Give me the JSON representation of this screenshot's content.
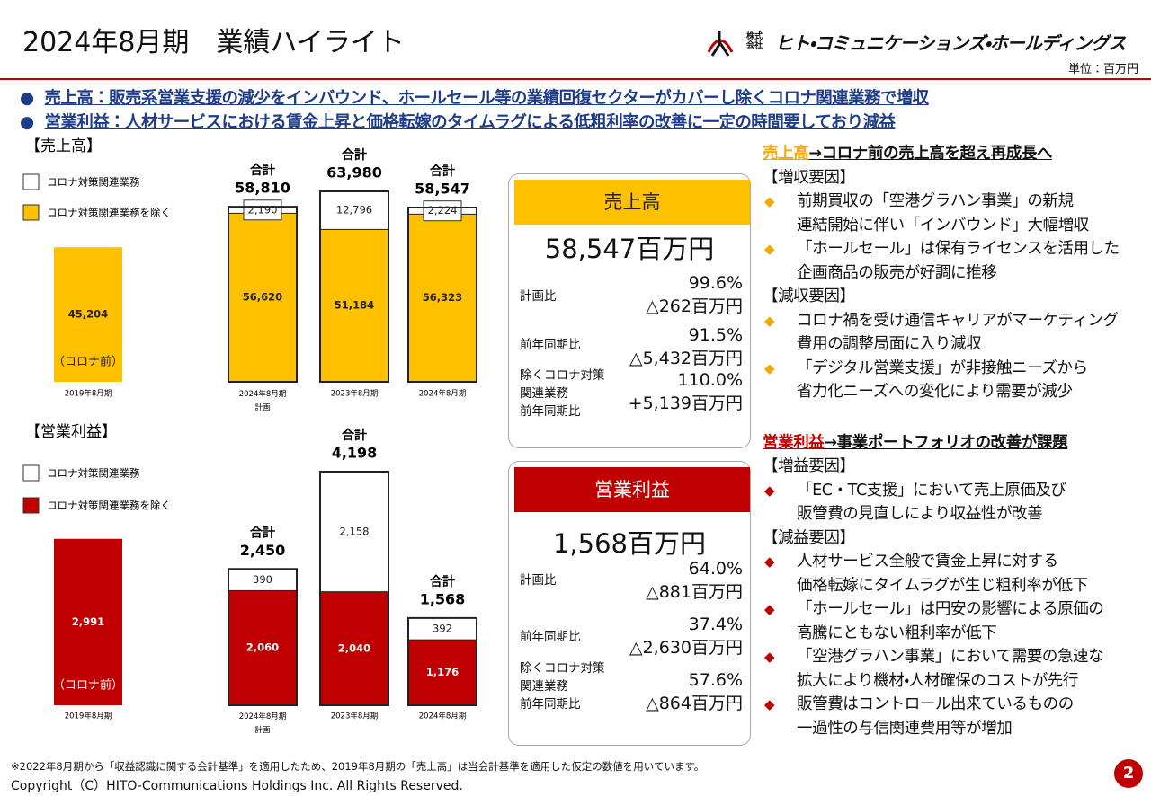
{
  "header": {
    "title": "2024年8月期　業績ハイライト",
    "company_prefix": "株式会社",
    "company": "ヒト・コミュニケーションズ・ホールディングス",
    "unit": "単位：百万円"
  },
  "headlines": [
    "売上高：販売系営業支援の減少をインバウンド、ホールセール等の業績回復セクターがカバーし除くコロナ関連業務で増収",
    "営業利益：人材サービスにおける賃金上昇と価格転嫁のタイムラグによる低粗利率の改善に一定の時間要しており減益"
  ],
  "chart_data": [
    {
      "type": "bar",
      "stacked": true,
      "title": "【売上高】",
      "categories": [
        "2019年8月期",
        "2024年8月期 計画",
        "2023年8月期",
        "2024年8月期"
      ],
      "series": [
        {
          "name": "コロナ対策関連業務を除く",
          "color": "#FFC000",
          "values": [
            45204,
            56620,
            51184,
            56323
          ],
          "value_labels": [
            "45,204",
            "56,620",
            "51,184",
            "56,323"
          ]
        },
        {
          "name": "コロナ対策関連業務",
          "color": "#FFFFFF",
          "values": [
            null,
            2190,
            12796,
            2224
          ],
          "value_labels": [
            null,
            "2,190",
            "12,796",
            "2,224"
          ]
        }
      ],
      "total_label": "合計",
      "totals": [
        null,
        58810,
        63980,
        58547
      ],
      "total_labels": [
        null,
        "58,810",
        "63,980",
        "58,547"
      ],
      "annotation": "（コロナ前）"
    },
    {
      "type": "bar",
      "stacked": true,
      "title": "【営業利益】",
      "categories": [
        "2019年8月期",
        "2024年8月期 計画",
        "2023年8月期",
        "2024年8月期"
      ],
      "series": [
        {
          "name": "コロナ対策関連業務を除く",
          "color": "#C00000",
          "values": [
            2991,
            2060,
            2040,
            1176
          ],
          "value_labels": [
            "2,991",
            "2,060",
            "2,040",
            "1,176"
          ]
        },
        {
          "name": "コロナ対策関連業務",
          "color": "#FFFFFF",
          "values": [
            null,
            390,
            2158,
            392
          ],
          "value_labels": [
            null,
            "390",
            "2,158",
            "392"
          ]
        }
      ],
      "total_label": "合計",
      "totals": [
        null,
        2450,
        4198,
        1568
      ],
      "total_labels": [
        null,
        "2,450",
        "4,198",
        "1,568"
      ],
      "annotation": "（コロナ前）"
    }
  ],
  "kpi_boxes": [
    {
      "title": "売上高",
      "main": "58,547百万円",
      "color": "#FFC000",
      "rows": [
        {
          "label": [
            "計画比"
          ],
          "rate": "99.6%",
          "diff": "△262百万円"
        },
        {
          "label": [
            "前年同期比"
          ],
          "rate": "91.5%",
          "diff": "△5,432百万円"
        },
        {
          "label": [
            "除くコロナ対策",
            "関連業務",
            "前年同期比"
          ],
          "rate": "110.0%",
          "diff": "+5,139百万円"
        }
      ]
    },
    {
      "title": "営業利益",
      "main": "1,568百万円",
      "color": "#C00000",
      "rows": [
        {
          "label": [
            "計画比"
          ],
          "rate": "64.0%",
          "diff": "△881百万円"
        },
        {
          "label": [
            "前年同期比"
          ],
          "rate": "37.4%",
          "diff": "△2,630百万円"
        },
        {
          "label": [
            "除くコロナ対策",
            "関連業務",
            "前年同期比"
          ],
          "rate": "57.6%",
          "diff": "△864百万円"
        }
      ]
    }
  ],
  "panel": [
    {
      "key": "売上高",
      "heading": "→コロナ前の売上高を超え再成長へ",
      "color": "#F5A800",
      "groups": [
        {
          "label": "【増収要因】",
          "items": [
            [
              "前期買収の「空港グラハン事業」の新規",
              "連結開始に伴い「インバウンド」大幅増収"
            ],
            [
              "「ホールセール」は保有ライセンスを活用した",
              "企画商品の販売が好調に推移"
            ]
          ]
        },
        {
          "label": "【減収要因】",
          "items": [
            [
              "コロナ禍を受け通信キャリアがマーケティング",
              "費用の調整局面に入り減収"
            ],
            [
              "「デジタル営業支援」が非接触ニーズから",
              "省力化ニーズへの変化により需要が減少"
            ]
          ]
        }
      ]
    },
    {
      "key": "営業利益",
      "heading": "→事業ポートフォリオの改善が課題",
      "color": "#C00000",
      "groups": [
        {
          "label": "【増益要因】",
          "items": [
            [
              "「EC・TC支援」において売上原価及び",
              "販管費の見直しにより収益性が改善"
            ]
          ]
        },
        {
          "label": "【減益要因】",
          "items": [
            [
              "人材サービス全般で賃金上昇に対する",
              "価格転嫁にタイムラグが生じ粗利率が低下"
            ],
            [
              "「ホールセール」は円安の影響による原価の",
              "高騰にともない粗利率が低下"
            ],
            [
              "「空港グラハン事業」において需要の急速な",
              "拡大により機材・人材確保のコストが先行"
            ],
            [
              "販管費はコントロール出来ているものの",
              "一過性の与信関連費用等が増加"
            ]
          ]
        }
      ]
    }
  ],
  "footer": {
    "note": "※2022年8月期から「収益認識に関する会計基準」を適用したため、2019年8月期の「売上高」は当会計基準を適用した仮定の数値を用いています。",
    "copyright": "Copyright（C）HITO-Communications Holdings Inc. All Rights Reserved.",
    "page": "2"
  }
}
